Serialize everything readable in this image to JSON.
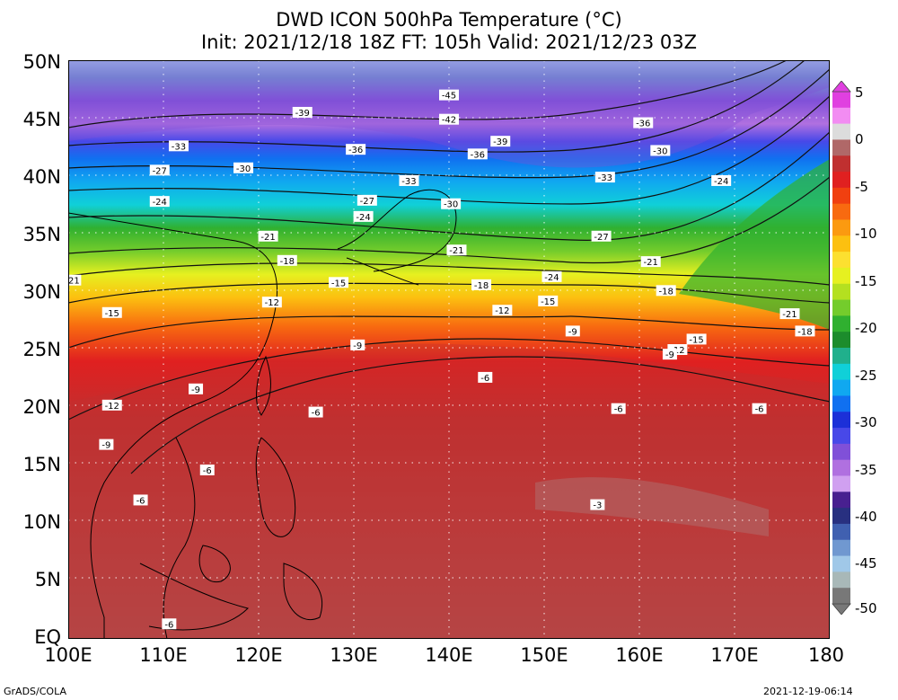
{
  "title": {
    "line1": "DWD ICON 500hPa Temperature (°C)",
    "line2": "Init: 2021/12/18 18Z  FT: 105h  Valid: 2021/12/23 03Z"
  },
  "lat_labels": [
    "50N",
    "45N",
    "40N",
    "35N",
    "30N",
    "25N",
    "20N",
    "15N",
    "10N",
    "5N",
    "EQ"
  ],
  "lon_labels": [
    "100E",
    "110E",
    "120E",
    "130E",
    "140E",
    "150E",
    "160E",
    "170E",
    "180"
  ],
  "colorbar": {
    "labels": [
      "5",
      "0",
      "-5",
      "-10",
      "-15",
      "-20",
      "-25",
      "-30",
      "-35",
      "-40",
      "-45",
      "-50"
    ],
    "colors": [
      "#e040e0",
      "#f28cf2",
      "#dcdcdc",
      "#b06868",
      "#c03030",
      "#e02020",
      "#f04010",
      "#f86a10",
      "#fb9a10",
      "#fcc010",
      "#fce030",
      "#e6f020",
      "#b4e020",
      "#74cc2c",
      "#30b030",
      "#1c8c2c",
      "#20b08c",
      "#10d0d8",
      "#10a8f0",
      "#1070f0",
      "#1c30d8",
      "#4848e8",
      "#8050d8",
      "#b070e0",
      "#d0a0f0",
      "#482090",
      "#283080",
      "#4060b0",
      "#7098d0",
      "#a0c8e8",
      "#a8b8b8",
      "#787878"
    ]
  },
  "contour_labels": [
    {
      "text": "-45",
      "lon": 140.0,
      "lat": 47.0
    },
    {
      "text": "-42",
      "lon": 140.0,
      "lat": 44.9
    },
    {
      "text": "-39",
      "lon": 124.6,
      "lat": 45.5
    },
    {
      "text": "-39",
      "lon": 145.4,
      "lat": 43.0
    },
    {
      "text": "-36",
      "lon": 160.4,
      "lat": 44.6
    },
    {
      "text": "-36",
      "lon": 130.2,
      "lat": 42.3
    },
    {
      "text": "-36",
      "lon": 143.0,
      "lat": 41.9
    },
    {
      "text": "-33",
      "lon": 111.6,
      "lat": 42.6
    },
    {
      "text": "-33",
      "lon": 135.8,
      "lat": 39.6
    },
    {
      "text": "-33",
      "lon": 156.4,
      "lat": 39.9
    },
    {
      "text": "-30",
      "lon": 162.2,
      "lat": 42.2
    },
    {
      "text": "-30",
      "lon": 118.4,
      "lat": 40.7
    },
    {
      "text": "-30",
      "lon": 140.2,
      "lat": 37.6
    },
    {
      "text": "-27",
      "lon": 109.6,
      "lat": 40.5
    },
    {
      "text": "-27",
      "lon": 131.4,
      "lat": 37.9
    },
    {
      "text": "-27",
      "lon": 156.0,
      "lat": 34.8
    },
    {
      "text": "-24",
      "lon": 168.6,
      "lat": 39.6
    },
    {
      "text": "-24",
      "lon": 109.6,
      "lat": 37.8
    },
    {
      "text": "-24",
      "lon": 131.0,
      "lat": 36.5
    },
    {
      "text": "-24",
      "lon": 150.8,
      "lat": 31.3
    },
    {
      "text": "-21",
      "lon": 121.0,
      "lat": 34.8
    },
    {
      "text": "-21",
      "lon": 140.8,
      "lat": 33.6
    },
    {
      "text": "-21",
      "lon": 161.2,
      "lat": 32.6
    },
    {
      "text": "-21",
      "lon": 175.8,
      "lat": 28.1
    },
    {
      "text": "-18",
      "lon": 123.0,
      "lat": 32.7
    },
    {
      "text": "-18",
      "lon": 143.4,
      "lat": 30.6
    },
    {
      "text": "-18",
      "lon": 162.8,
      "lat": 30.1
    },
    {
      "text": "-18",
      "lon": 177.4,
      "lat": 26.6
    },
    {
      "text": "21",
      "lon": 100.6,
      "lat": 31.0
    },
    {
      "text": "-15",
      "lon": 128.4,
      "lat": 30.8
    },
    {
      "text": "-15",
      "lon": 150.4,
      "lat": 29.2
    },
    {
      "text": "-15",
      "lon": 166.0,
      "lat": 25.9
    },
    {
      "text": "-15",
      "lon": 104.6,
      "lat": 28.2
    },
    {
      "text": "-12",
      "lon": 121.4,
      "lat": 29.1
    },
    {
      "text": "-12",
      "lon": 145.6,
      "lat": 28.4
    },
    {
      "text": "-12",
      "lon": 164.0,
      "lat": 25.0
    },
    {
      "text": "-12",
      "lon": 104.6,
      "lat": 20.2
    },
    {
      "text": "-9",
      "lon": 153.0,
      "lat": 26.6
    },
    {
      "text": "-9",
      "lon": 163.2,
      "lat": 24.6
    },
    {
      "text": "-9",
      "lon": 130.4,
      "lat": 25.4
    },
    {
      "text": "-9",
      "lon": 113.4,
      "lat": 21.6
    },
    {
      "text": "-9",
      "lon": 104.0,
      "lat": 16.8
    },
    {
      "text": "-6",
      "lon": 143.8,
      "lat": 22.6
    },
    {
      "text": "-6",
      "lon": 126.0,
      "lat": 19.6
    },
    {
      "text": "-6",
      "lon": 157.8,
      "lat": 19.9
    },
    {
      "text": "-6",
      "lon": 172.6,
      "lat": 19.9
    },
    {
      "text": "-6",
      "lon": 114.6,
      "lat": 14.6
    },
    {
      "text": "-6",
      "lon": 107.6,
      "lat": 12.0
    },
    {
      "text": "-6",
      "lon": 110.6,
      "lat": 1.3
    },
    {
      "text": "-3",
      "lon": 155.6,
      "lat": 11.6
    }
  ],
  "footer": {
    "left": "GrADS/COLA",
    "right": "2021-12-19-06:14"
  }
}
